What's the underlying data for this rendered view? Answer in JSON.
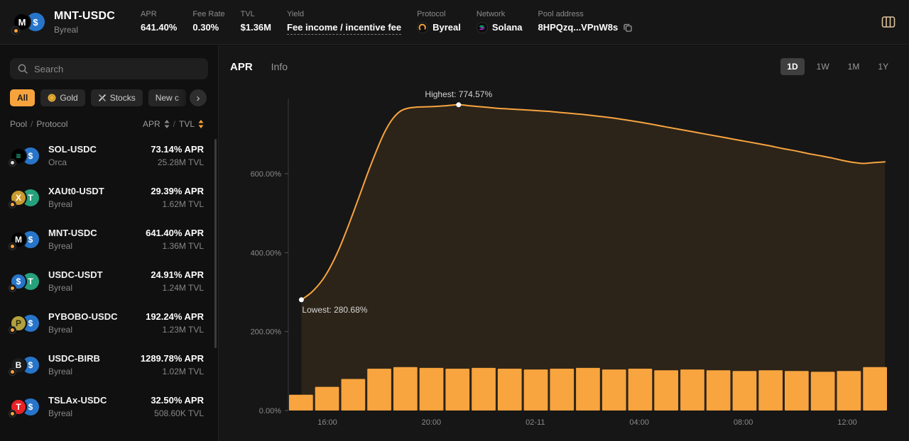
{
  "accent_color": "#F8A43F",
  "header": {
    "title": "MNT-USDC",
    "subtitle": "Byreal",
    "pair_icon": {
      "c1_bg": "#000000",
      "c1_fg": "#ffffff",
      "c1_glyph": "M",
      "c2_bg": "#2775ca",
      "c2_fg": "#ffffff",
      "c2_glyph": "$",
      "badge": "#f7a33d"
    },
    "stats": [
      {
        "label": "APR",
        "value": "641.40%"
      },
      {
        "label": "Fee Rate",
        "value": "0.30%"
      },
      {
        "label": "TVL",
        "value": "$1.36M"
      },
      {
        "label": "Yield",
        "value": "Fee income / incentive fee",
        "underline": true
      },
      {
        "label": "Protocol",
        "value": "Byreal",
        "icon": "byreal-icon"
      },
      {
        "label": "Network",
        "value": "Solana",
        "icon": "solana-icon"
      },
      {
        "label": "Pool address",
        "value": "8HPQzq...VPnW8s",
        "copy": true
      }
    ]
  },
  "sidebar": {
    "search_placeholder": "Search",
    "filters": [
      {
        "label": "All",
        "active": true
      },
      {
        "label": "Gold",
        "icon": "gold-icon"
      },
      {
        "label": "Stocks",
        "icon": "stocks-icon"
      },
      {
        "label": "New c",
        "icon": null
      }
    ],
    "next_arrow": "›",
    "columns": {
      "pool": "Pool",
      "separator": "/",
      "protocol": "Protocol",
      "apr": "APR",
      "tvl": "TVL"
    },
    "sort_colors": {
      "apr": "#8a8a8a",
      "tvl": "#f7a33d"
    },
    "pools": [
      {
        "name": "SOL-USDC",
        "protocol": "Orca",
        "apr": "73.14% APR",
        "tvl": "25.28M TVL",
        "icon": {
          "c1_bg": "#000000",
          "c1_fg": "#2fe6a7",
          "c1_glyph": "≡",
          "c2_bg": "#2775ca",
          "c2_fg": "#ffffff",
          "c2_glyph": "$",
          "badge": "#dddddd"
        }
      },
      {
        "name": "XAUt0-USDT",
        "protocol": "Byreal",
        "apr": "29.39% APR",
        "tvl": "1.62M TVL",
        "icon": {
          "c1_bg": "#c99a2e",
          "c1_fg": "#ffffff",
          "c1_glyph": "X",
          "c2_bg": "#26a17b",
          "c2_fg": "#ffffff",
          "c2_glyph": "T",
          "badge": "#f7a33d"
        }
      },
      {
        "name": "MNT-USDC",
        "protocol": "Byreal",
        "apr": "641.40% APR",
        "tvl": "1.36M TVL",
        "icon": {
          "c1_bg": "#000000",
          "c1_fg": "#ffffff",
          "c1_glyph": "M",
          "c2_bg": "#2775ca",
          "c2_fg": "#ffffff",
          "c2_glyph": "$",
          "badge": "#f7a33d"
        }
      },
      {
        "name": "USDC-USDT",
        "protocol": "Byreal",
        "apr": "24.91% APR",
        "tvl": "1.24M TVL",
        "icon": {
          "c1_bg": "#2775ca",
          "c1_fg": "#ffffff",
          "c1_glyph": "$",
          "c2_bg": "#26a17b",
          "c2_fg": "#ffffff",
          "c2_glyph": "T",
          "badge": "#f7a33d"
        }
      },
      {
        "name": "PYBOBO-USDC",
        "protocol": "Byreal",
        "apr": "192.24% APR",
        "tvl": "1.23M TVL",
        "icon": {
          "c1_bg": "#b4a13c",
          "c1_fg": "#2c2c12",
          "c1_glyph": "P",
          "c2_bg": "#2775ca",
          "c2_fg": "#ffffff",
          "c2_glyph": "$",
          "badge": "#f7a33d"
        }
      },
      {
        "name": "USDC-BIRB",
        "protocol": "Byreal",
        "apr": "1289.78% APR",
        "tvl": "1.02M TVL",
        "icon": {
          "c1_bg": "#1c1c1c",
          "c1_fg": "#ffffff",
          "c1_glyph": "B",
          "c2_bg": "#2775ca",
          "c2_fg": "#ffffff",
          "c2_glyph": "$",
          "badge": "#f7a33d"
        }
      },
      {
        "name": "TSLAx-USDC",
        "protocol": "Byreal",
        "apr": "32.50% APR",
        "tvl": "508.60K TVL",
        "icon": {
          "c1_bg": "#e82127",
          "c1_fg": "#ffffff",
          "c1_glyph": "T",
          "c2_bg": "#2775ca",
          "c2_fg": "#ffffff",
          "c2_glyph": "$",
          "badge": "#f7a33d"
        }
      }
    ]
  },
  "main": {
    "tabs": [
      {
        "label": "APR",
        "active": true
      },
      {
        "label": "Info",
        "active": false
      }
    ],
    "ranges": [
      {
        "label": "1D",
        "active": true
      },
      {
        "label": "1W",
        "active": false
      },
      {
        "label": "1M",
        "active": false
      },
      {
        "label": "1Y",
        "active": false
      }
    ]
  },
  "chart_data": {
    "type": "area",
    "title": "APR over time (1D)",
    "active_range": "1D",
    "line_color": "#F8A43F",
    "area_fill": "rgba(248,164,63,0.10)",
    "bar_color": "#F8A43F",
    "axis_color": "#3a3a3a",
    "tick_color": "#8a8a8a",
    "annotation_color": "#d6d6d6",
    "ylim": [
      0,
      800
    ],
    "highest": {
      "label": "Highest: 774.57%",
      "t": 6.05,
      "value": 774.57
    },
    "lowest": {
      "label": "Lowest: 280.68%",
      "t": 0,
      "value": 280.68
    },
    "yticks": [
      {
        "v": 0,
        "label": "0.00%"
      },
      {
        "v": 200,
        "label": "200.00%"
      },
      {
        "v": 400,
        "label": "400.00%"
      },
      {
        "v": 600,
        "label": "600.00%"
      }
    ],
    "xticks": [
      {
        "t": 1,
        "label": "16:00"
      },
      {
        "t": 5,
        "label": "20:00"
      },
      {
        "t": 9,
        "label": "02-11"
      },
      {
        "t": 13,
        "label": "04:00"
      },
      {
        "t": 17,
        "label": "08:00"
      },
      {
        "t": 21,
        "label": "12:00"
      }
    ],
    "line_points": [
      [
        0,
        280.68
      ],
      [
        0.4,
        300
      ],
      [
        0.8,
        330
      ],
      [
        1.1,
        362
      ],
      [
        1.4,
        402
      ],
      [
        1.7,
        450
      ],
      [
        2.0,
        502
      ],
      [
        2.3,
        556
      ],
      [
        2.6,
        610
      ],
      [
        2.9,
        660
      ],
      [
        3.2,
        705
      ],
      [
        3.5,
        738
      ],
      [
        3.8,
        758
      ],
      [
        4.1,
        766
      ],
      [
        4.5,
        769
      ],
      [
        5.0,
        770
      ],
      [
        5.5,
        772
      ],
      [
        6.05,
        774.57
      ],
      [
        6.5,
        772
      ],
      [
        7.0,
        769
      ],
      [
        7.5,
        766
      ],
      [
        8.0,
        764
      ],
      [
        8.5,
        762
      ],
      [
        9.0,
        760
      ],
      [
        9.5,
        758
      ],
      [
        10.0,
        755
      ],
      [
        10.5,
        752
      ],
      [
        11.0,
        749
      ],
      [
        11.5,
        745
      ],
      [
        12.0,
        741
      ],
      [
        12.5,
        736
      ],
      [
        13.0,
        731
      ],
      [
        13.5,
        725
      ],
      [
        14.0,
        719
      ],
      [
        14.5,
        713
      ],
      [
        15.0,
        707
      ],
      [
        15.5,
        701
      ],
      [
        16.0,
        695
      ],
      [
        16.5,
        689
      ],
      [
        17.0,
        683
      ],
      [
        17.5,
        677
      ],
      [
        18.0,
        671
      ],
      [
        18.5,
        664
      ],
      [
        19.0,
        658
      ],
      [
        19.5,
        651
      ],
      [
        20.0,
        645
      ],
      [
        20.4,
        640
      ],
      [
        20.8,
        634
      ],
      [
        21.2,
        629
      ],
      [
        21.6,
        626
      ],
      [
        22.0,
        628
      ],
      [
        22.45,
        630
      ]
    ],
    "bars": [
      40,
      60,
      80,
      106,
      110,
      108,
      106,
      108,
      106,
      104,
      106,
      108,
      104,
      106,
      102,
      104,
      102,
      100,
      102,
      100,
      98,
      100,
      110
    ]
  }
}
